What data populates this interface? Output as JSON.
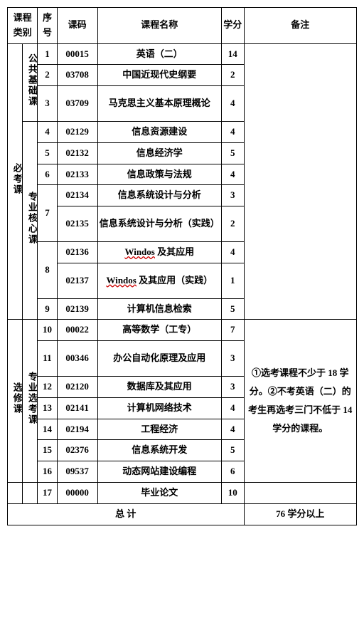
{
  "header": {
    "cat": "课程类别",
    "seq": "序号",
    "code": "课码",
    "name": "课程名称",
    "credit": "学分",
    "note": "备注"
  },
  "cat1": {
    "required": "必考课",
    "elective": "选修课"
  },
  "cat2": {
    "public": "公共基础课",
    "core": "专业核心课",
    "elect": "专业选考课"
  },
  "rows": [
    {
      "seq": "1",
      "code": "00015",
      "name": "英语（二）",
      "credit": "14"
    },
    {
      "seq": "2",
      "code": "03708",
      "name": "中国近现代史纲要",
      "credit": "2"
    },
    {
      "seq": "3",
      "code": "03709",
      "name": "马克思主义基本原理概论",
      "credit": "4"
    },
    {
      "seq": "4",
      "code": "02129",
      "name": "信息资源建设",
      "credit": "4"
    },
    {
      "seq": "5",
      "code": "02132",
      "name": "信息经济学",
      "credit": "5"
    },
    {
      "seq": "6",
      "code": "02133",
      "name": "信息政策与法规",
      "credit": "4"
    },
    {
      "seq": "7",
      "code": "02134",
      "name": "信息系统设计与分析",
      "credit": "3"
    },
    {
      "seq": "",
      "code": "02135",
      "name": "信息系统设计与分析（实践）",
      "credit": "2"
    },
    {
      "seq": "8",
      "code": "02136",
      "name": "Windos 及其应用",
      "credit": "4"
    },
    {
      "seq": "",
      "code": "02137",
      "name": "Windos 及其应用（实践）",
      "credit": "1"
    },
    {
      "seq": "9",
      "code": "02139",
      "name": "计算机信息检索",
      "credit": "5"
    },
    {
      "seq": "10",
      "code": "00022",
      "name": "高等数学（工专）",
      "credit": "7"
    },
    {
      "seq": "11",
      "code": "00346",
      "name": "办公自动化原理及应用",
      "credit": "3"
    },
    {
      "seq": "12",
      "code": "02120",
      "name": "数据库及其应用",
      "credit": "3"
    },
    {
      "seq": "13",
      "code": "02141",
      "name": "计算机网络技术",
      "credit": "4"
    },
    {
      "seq": "14",
      "code": "02194",
      "name": "工程经济",
      "credit": "4"
    },
    {
      "seq": "15",
      "code": "02376",
      "name": "信息系统开发",
      "credit": "5"
    },
    {
      "seq": "16",
      "code": "09537",
      "name": "动态网站建设编程",
      "credit": "6"
    },
    {
      "seq": "17",
      "code": "00000",
      "name": "毕业论文",
      "credit": "10"
    }
  ],
  "note": "①选考课程不少于 18 学分。②不考英语（二）的考生再选考三门不低于 14 学分的课程。",
  "total": {
    "label": "总 计",
    "value": "76 学分以上"
  },
  "wavy": "Windos"
}
